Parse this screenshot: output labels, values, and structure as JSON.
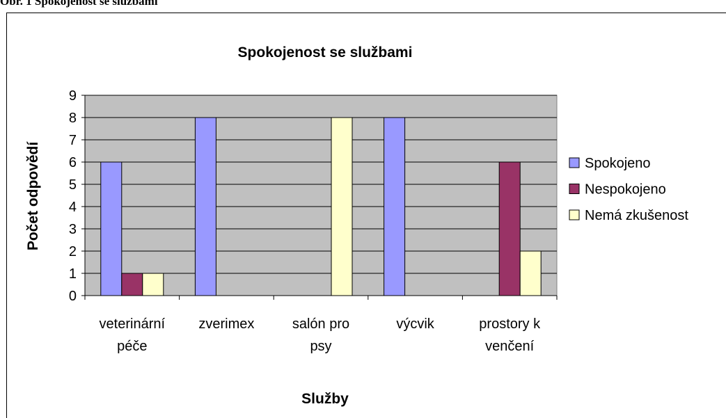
{
  "caption": "Obr. 1 Spokojenost se službami",
  "chart_data": {
    "type": "bar",
    "title": "Spokojenost se službami",
    "x_label": "Služby",
    "y_label": "Počet odpovědí",
    "categories": [
      "veterinární péče",
      "zverimex",
      "salón pro psy",
      "výcvik",
      "prostory k venčení"
    ],
    "series": [
      {
        "name": "Spokojeno",
        "color": "#9999ff",
        "values": [
          6,
          8,
          0,
          8,
          0
        ]
      },
      {
        "name": "Nespokojeno",
        "color": "#993366",
        "values": [
          1,
          0,
          0,
          0,
          6
        ]
      },
      {
        "name": "Nemá zkušenost",
        "color": "#ffffcc",
        "values": [
          1,
          0,
          8,
          0,
          2
        ]
      }
    ],
    "ylim": [
      0,
      9
    ],
    "yticks": [
      0,
      1,
      2,
      3,
      4,
      5,
      6,
      7,
      8,
      9
    ],
    "grid": true,
    "legend": "right"
  }
}
